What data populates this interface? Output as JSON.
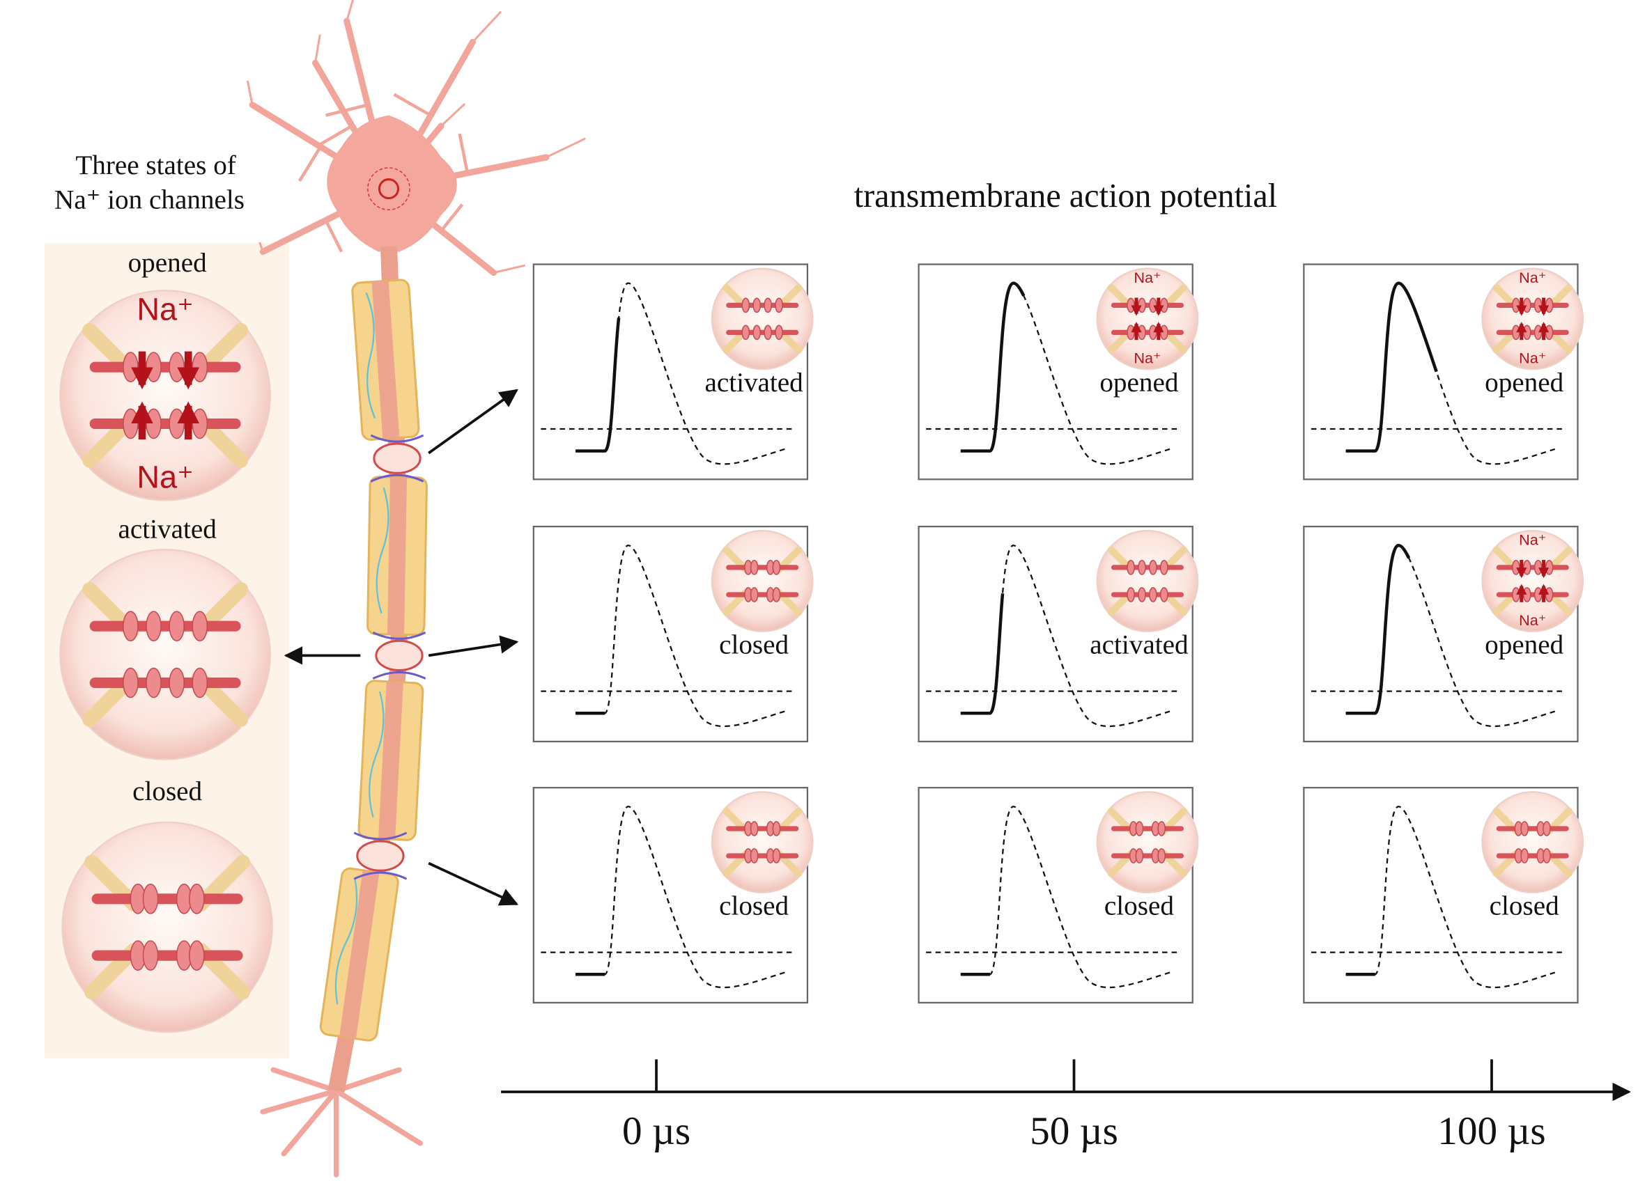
{
  "legend": {
    "title_lines": [
      "Three states of",
      "Na⁺ ion channels"
    ],
    "states": [
      {
        "label": "opened",
        "ions": [
          "Na⁺",
          "Na⁺"
        ]
      },
      {
        "label": "activated"
      },
      {
        "label": "closed"
      }
    ]
  },
  "panel_title": "transmembrane action potential",
  "panels": [
    [
      {
        "label": "activated"
      },
      {
        "label": "opened",
        "ions": [
          "Na⁺",
          "Na⁺"
        ]
      },
      {
        "label": "opened",
        "ions": [
          "Na⁺",
          "Na⁺"
        ]
      }
    ],
    [
      {
        "label": "closed"
      },
      {
        "label": "activated"
      },
      {
        "label": "opened",
        "ions": [
          "Na⁺",
          "Na⁺"
        ]
      }
    ],
    [
      {
        "label": "closed"
      },
      {
        "label": "closed"
      },
      {
        "label": "closed"
      }
    ]
  ],
  "timeline": {
    "ticks": [
      "0 µs",
      "50 µs",
      "100 µs"
    ]
  }
}
